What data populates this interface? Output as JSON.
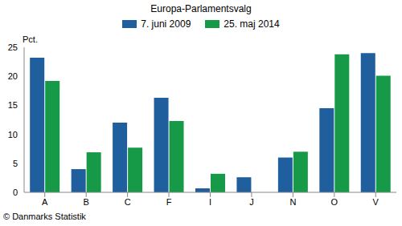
{
  "chart_data": {
    "type": "bar",
    "title": "Europa-Parlamentsvalg",
    "ylabel": "Pct.",
    "annotations": [
      "© Danmarks Statistik"
    ],
    "categories": [
      "A",
      "B",
      "C",
      "F",
      "I",
      "J",
      "N",
      "O",
      "V"
    ],
    "series": [
      {
        "name": "7. juni 2009",
        "color": "#1f5f9e",
        "values": [
          23.2,
          4.0,
          12.0,
          16.3,
          0.7,
          2.6,
          6.0,
          14.5,
          24.0
        ]
      },
      {
        "name": "25. maj 2014",
        "color": "#169a48",
        "values": [
          19.2,
          6.9,
          7.7,
          12.3,
          3.2,
          null,
          7.0,
          23.8,
          20.1
        ]
      }
    ],
    "ylim": [
      0,
      25
    ],
    "yticks": [
      0,
      5,
      10,
      15,
      20,
      25
    ],
    "grid": false,
    "legend": "top"
  }
}
